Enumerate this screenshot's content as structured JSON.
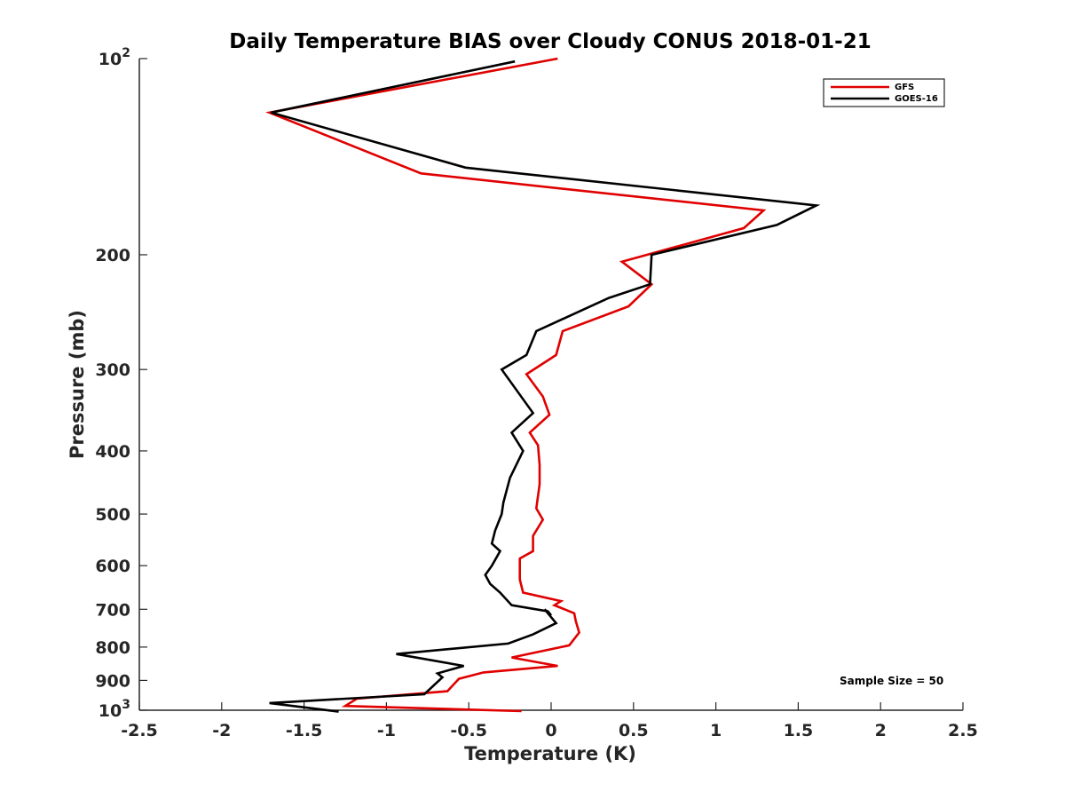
{
  "chart_data": {
    "type": "line",
    "title": "Daily Temperature BIAS over Cloudy CONUS 2018-01-21",
    "xlabel": "Temperature (K)",
    "ylabel": "Pressure (mb)",
    "xlim": [
      -2.5,
      2.5
    ],
    "ylim": [
      100,
      1000
    ],
    "yscale": "log",
    "y_reversed": true,
    "xticks": [
      -2.5,
      -2,
      -1.5,
      -1,
      -0.5,
      0,
      0.5,
      1,
      1.5,
      2,
      2.5
    ],
    "xtick_labels": [
      "-2.5",
      "-2",
      "-1.5",
      "-1",
      "-0.5",
      "0",
      "0.5",
      "1",
      "1.5",
      "2",
      "2.5"
    ],
    "yticks": [
      {
        "value": 100,
        "base": "10",
        "exp": "2"
      },
      {
        "value": 200,
        "label": "200"
      },
      {
        "value": 300,
        "label": "300"
      },
      {
        "value": 400,
        "label": "400"
      },
      {
        "value": 500,
        "label": "500"
      },
      {
        "value": 600,
        "label": "600"
      },
      {
        "value": 700,
        "label": "700"
      },
      {
        "value": 800,
        "label": "800"
      },
      {
        "value": 900,
        "label": "900"
      },
      {
        "value": 1000,
        "base": "10",
        "exp": "3"
      }
    ],
    "grid": false,
    "legend_position": "top-right",
    "annotation": "Sample Size = 50",
    "series": [
      {
        "name": "GFS",
        "color": "#e00000",
        "x": [
          0.04,
          -1.71,
          -0.79,
          1.29,
          1.17,
          0.43,
          0.61,
          0.47,
          0.07,
          0.03,
          -0.15,
          -0.05,
          -0.01,
          -0.13,
          -0.08,
          -0.07,
          -0.07,
          -0.09,
          -0.05,
          -0.11,
          -0.11,
          -0.19,
          -0.19,
          -0.17,
          0.06,
          0.02,
          0.14,
          0.15,
          0.17,
          0.11,
          -0.24,
          0.04,
          -0.41,
          -0.56,
          -0.63,
          -1.18,
          -1.25,
          -0.18
        ],
        "y": [
          100,
          121,
          150,
          171,
          182,
          205,
          222,
          240,
          262,
          285,
          305,
          330,
          352,
          375,
          392,
          420,
          450,
          490,
          510,
          540,
          570,
          585,
          630,
          660,
          680,
          690,
          710,
          730,
          760,
          795,
          830,
          855,
          875,
          895,
          935,
          960,
          985,
          1003
        ]
      },
      {
        "name": "GOES-16",
        "color": "#000000",
        "x": [
          -0.22,
          -1.7,
          -0.52,
          1.61,
          1.37,
          0.61,
          0.6,
          0.35,
          -0.09,
          -0.15,
          -0.3,
          -0.11,
          -0.24,
          -0.17,
          -0.25,
          -0.29,
          -0.3,
          -0.34,
          -0.36,
          -0.31,
          -0.36,
          -0.4,
          -0.37,
          -0.31,
          -0.24,
          -0.02,
          0.0,
          -0.04,
          0.03,
          -0.11,
          -0.26,
          -0.94,
          -0.53,
          -0.69,
          -0.66,
          -0.77,
          -1.71,
          -1.29
        ],
        "y": [
          101,
          121,
          147,
          168,
          180,
          200,
          222,
          233,
          262,
          285,
          300,
          350,
          375,
          400,
          440,
          480,
          500,
          530,
          555,
          570,
          600,
          620,
          640,
          660,
          690,
          705,
          715,
          700,
          735,
          765,
          790,
          820,
          855,
          878,
          890,
          945,
          975,
          1005
        ]
      }
    ]
  }
}
